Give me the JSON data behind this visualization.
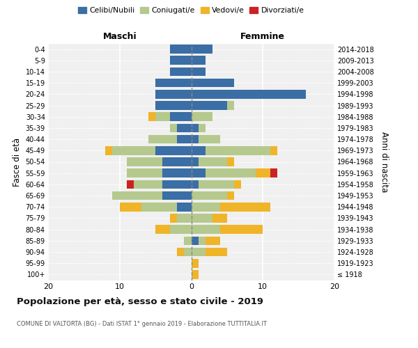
{
  "age_groups": [
    "100+",
    "95-99",
    "90-94",
    "85-89",
    "80-84",
    "75-79",
    "70-74",
    "65-69",
    "60-64",
    "55-59",
    "50-54",
    "45-49",
    "40-44",
    "35-39",
    "30-34",
    "25-29",
    "20-24",
    "15-19",
    "10-14",
    "5-9",
    "0-4"
  ],
  "birth_years": [
    "≤ 1918",
    "1919-1923",
    "1924-1928",
    "1929-1933",
    "1934-1938",
    "1939-1943",
    "1944-1948",
    "1949-1953",
    "1954-1958",
    "1959-1963",
    "1964-1968",
    "1969-1973",
    "1974-1978",
    "1979-1983",
    "1984-1988",
    "1989-1993",
    "1994-1998",
    "1999-2003",
    "2004-2008",
    "2009-2013",
    "2014-2018"
  ],
  "colors": {
    "celibe": "#3a6ea5",
    "coniugato": "#b5c98e",
    "vedovo": "#f0b429",
    "divorziato": "#cc2222"
  },
  "maschi": {
    "celibe": [
      0,
      0,
      0,
      0,
      0,
      0,
      2,
      4,
      4,
      4,
      4,
      5,
      2,
      2,
      3,
      5,
      5,
      5,
      3,
      3,
      3
    ],
    "coniugato": [
      0,
      0,
      1,
      1,
      3,
      2,
      5,
      7,
      4,
      5,
      5,
      6,
      4,
      1,
      2,
      0,
      0,
      0,
      0,
      0,
      0
    ],
    "vedovo": [
      0,
      0,
      1,
      0,
      2,
      1,
      3,
      0,
      0,
      0,
      0,
      1,
      0,
      0,
      1,
      0,
      0,
      0,
      0,
      0,
      0
    ],
    "divorziato": [
      0,
      0,
      0,
      0,
      0,
      0,
      0,
      0,
      1,
      0,
      0,
      0,
      0,
      0,
      0,
      0,
      0,
      0,
      0,
      0,
      0
    ]
  },
  "femmine": {
    "nubile": [
      0,
      0,
      0,
      1,
      0,
      0,
      0,
      0,
      1,
      2,
      1,
      2,
      1,
      1,
      0,
      5,
      16,
      6,
      2,
      2,
      3
    ],
    "coniugata": [
      0,
      0,
      2,
      1,
      4,
      3,
      4,
      5,
      5,
      7,
      4,
      9,
      3,
      1,
      3,
      1,
      0,
      0,
      0,
      0,
      0
    ],
    "vedova": [
      1,
      1,
      3,
      2,
      6,
      2,
      7,
      1,
      1,
      2,
      1,
      1,
      0,
      0,
      0,
      0,
      0,
      0,
      0,
      0,
      0
    ],
    "divorziata": [
      0,
      0,
      0,
      0,
      0,
      0,
      0,
      0,
      0,
      1,
      0,
      0,
      0,
      0,
      0,
      0,
      0,
      0,
      0,
      0,
      0
    ]
  },
  "xlim": [
    -20,
    20
  ],
  "xticks": [
    -20,
    -10,
    0,
    10,
    20
  ],
  "xticklabels": [
    "20",
    "10",
    "0",
    "10",
    "20"
  ],
  "title": "Popolazione per età, sesso e stato civile - 2019",
  "subtitle": "COMUNE DI VALTORTA (BG) - Dati ISTAT 1° gennaio 2019 - Elaborazione TUTTITALIA.IT",
  "ylabel_left": "Fasce di età",
  "ylabel_right": "Anni di nascita",
  "xlabel_left": "Maschi",
  "xlabel_right": "Femmine",
  "legend_labels": [
    "Celibi/Nubili",
    "Coniugati/e",
    "Vedovi/e",
    "Divorziati/e"
  ],
  "bg_color": "#f0f0f0",
  "fig_bg": "#ffffff"
}
